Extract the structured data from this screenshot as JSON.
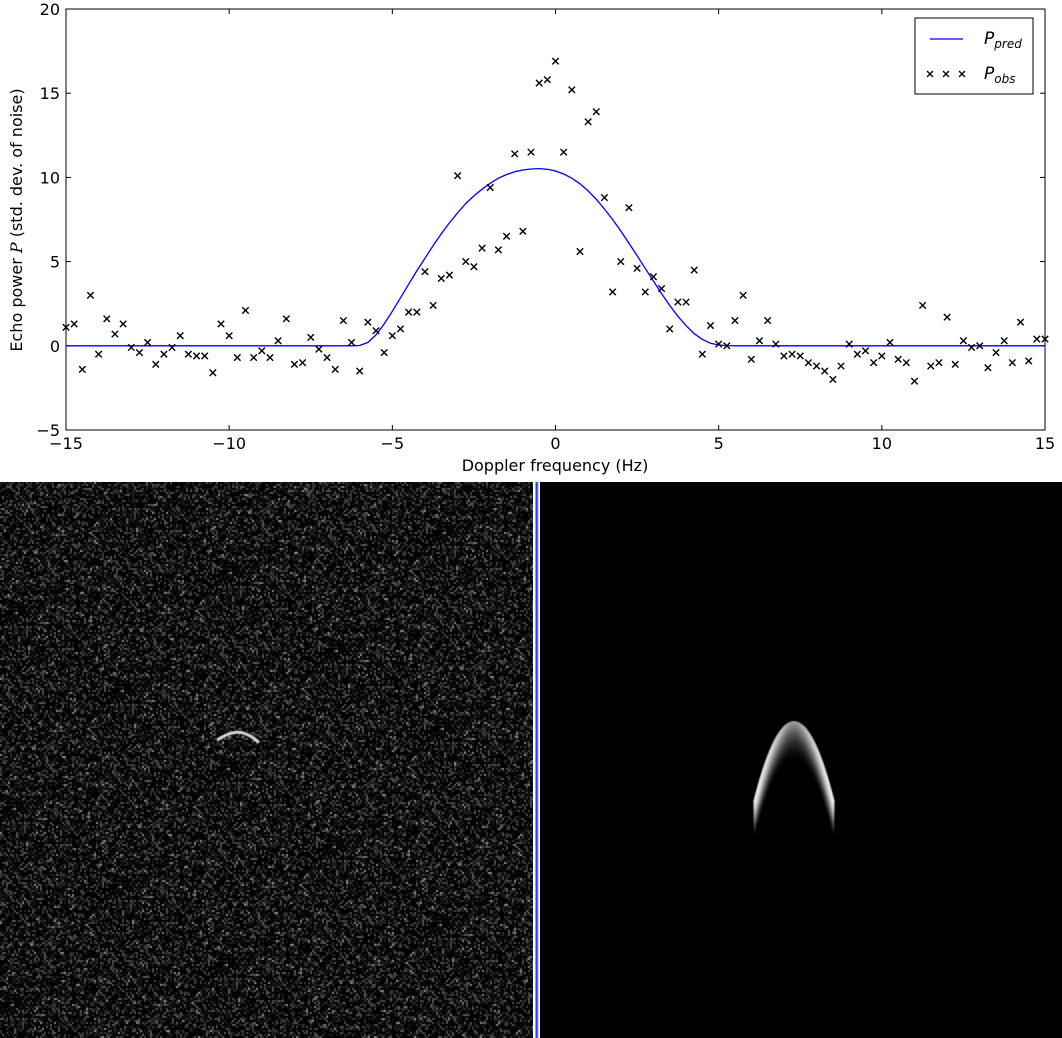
{
  "chart_data": {
    "type": "line",
    "title": "",
    "xlabel": "Doppler frequency (Hz)",
    "ylabel_prefix": "Echo power ",
    "ylabel_symbol": "P",
    "ylabel_suffix": " (std. dev. of noise)",
    "xlim": [
      -15,
      15
    ],
    "ylim": [
      -5,
      20
    ],
    "xticks": [
      -15,
      -10,
      -5,
      0,
      5,
      10,
      15
    ],
    "yticks": [
      -5,
      0,
      5,
      10,
      15,
      20
    ],
    "xtick_labels": [
      "−15",
      "−10",
      "−5",
      "0",
      "5",
      "10",
      "15"
    ],
    "ytick_labels": [
      "−5",
      "0",
      "5",
      "10",
      "15",
      "20"
    ],
    "grid": false,
    "legend": "top-right",
    "series": [
      {
        "name_base": "P",
        "name_sub": "pred",
        "style": "line",
        "color": "#0000ff",
        "x": [
          -15,
          -6.25,
          -6,
          -5.75,
          -5.5,
          -5.25,
          -5,
          -4.75,
          -4.5,
          -4.25,
          -4,
          -3.75,
          -3.5,
          -3.25,
          -3,
          -2.75,
          -2.5,
          -2.25,
          -2,
          -1.75,
          -1.5,
          -1.25,
          -1,
          -0.75,
          -0.5,
          -0.25,
          0,
          0.25,
          0.5,
          0.75,
          1,
          1.25,
          1.5,
          1.75,
          2,
          2.25,
          2.5,
          2.75,
          3,
          3.25,
          3.5,
          3.75,
          4,
          4.25,
          4.5,
          4.75,
          5,
          5.25,
          5.5,
          15
        ],
        "y": [
          0,
          0,
          0.02,
          0.2,
          0.65,
          1.3,
          2.05,
          2.85,
          3.65,
          4.45,
          5.2,
          5.95,
          6.65,
          7.3,
          7.9,
          8.45,
          8.9,
          9.3,
          9.65,
          9.95,
          10.17,
          10.33,
          10.44,
          10.5,
          10.52,
          10.48,
          10.38,
          10.2,
          9.95,
          9.62,
          9.2,
          8.7,
          8.12,
          7.5,
          6.82,
          6.1,
          5.35,
          4.6,
          3.85,
          3.1,
          2.4,
          1.75,
          1.2,
          0.72,
          0.38,
          0.15,
          0.05,
          0.01,
          0,
          0
        ]
      },
      {
        "name_base": "P",
        "name_sub": "obs",
        "style": "markers",
        "marker": "x",
        "color": "#000000",
        "x": [
          -15,
          -14.75,
          -14.5,
          -14.25,
          -14,
          -13.75,
          -13.5,
          -13.25,
          -13,
          -12.75,
          -12.5,
          -12.25,
          -12,
          -11.75,
          -11.5,
          -11.25,
          -11,
          -10.75,
          -10.5,
          -10.25,
          -10,
          -9.75,
          -9.5,
          -9.25,
          -9,
          -8.75,
          -8.5,
          -8.25,
          -8,
          -7.75,
          -7.5,
          -7.25,
          -7,
          -6.75,
          -6.5,
          -6.25,
          -6,
          -5.75,
          -5.5,
          -5.25,
          -5,
          -4.75,
          -4.5,
          -4.25,
          -4,
          -3.75,
          -3.5,
          -3.25,
          -3,
          -2.75,
          -2.5,
          -2.25,
          -2,
          -1.75,
          -1.5,
          -1.25,
          -1,
          -0.75,
          -0.5,
          -0.25,
          0,
          0.25,
          0.5,
          0.75,
          1,
          1.25,
          1.5,
          1.75,
          2,
          2.25,
          2.5,
          2.75,
          3,
          3.25,
          3.5,
          3.75,
          4,
          4.25,
          4.5,
          4.75,
          5,
          5.25,
          5.5,
          5.75,
          6,
          6.25,
          6.5,
          6.75,
          7,
          7.25,
          7.5,
          7.75,
          8,
          8.25,
          8.5,
          8.75,
          9,
          9.25,
          9.5,
          9.75,
          10,
          10.25,
          10.5,
          10.75,
          11,
          11.25,
          11.5,
          11.75,
          12,
          12.25,
          12.5,
          12.75,
          13,
          13.25,
          13.5,
          13.75,
          14,
          14.25,
          14.5,
          14.75,
          15
        ],
        "y": [
          1.1,
          1.3,
          -1.4,
          3.0,
          -0.5,
          1.6,
          0.7,
          1.3,
          -0.1,
          -0.4,
          0.2,
          -1.1,
          -0.5,
          -0.1,
          0.6,
          -0.5,
          -0.6,
          -0.6,
          -1.6,
          1.3,
          0.6,
          -0.7,
          2.1,
          -0.7,
          -0.3,
          -0.7,
          0.3,
          1.6,
          -1.1,
          -1.0,
          0.5,
          -0.2,
          -0.7,
          -1.4,
          1.5,
          0.2,
          -1.5,
          1.4,
          0.9,
          -0.4,
          0.6,
          1.0,
          2.0,
          2.0,
          4.4,
          2.4,
          4.0,
          4.2,
          10.1,
          5.0,
          4.7,
          5.8,
          9.4,
          5.7,
          6.5,
          11.4,
          6.8,
          11.5,
          15.6,
          15.8,
          16.9,
          11.5,
          15.2,
          5.6,
          13.3,
          13.9,
          8.8,
          3.2,
          5.0,
          8.2,
          4.6,
          3.2,
          4.1,
          3.4,
          1.0,
          2.6,
          2.6,
          4.5,
          -0.5,
          1.2,
          0.1,
          0.0,
          1.5,
          3.0,
          -0.8,
          0.3,
          1.5,
          0.1,
          -0.6,
          -0.5,
          -0.6,
          -1.0,
          -1.2,
          -1.5,
          -2.0,
          -1.2,
          0.1,
          -0.5,
          -0.3,
          -1.0,
          -0.6,
          0.2,
          -0.8,
          -1.0,
          -2.1,
          2.4,
          -1.2,
          -1.0,
          1.7,
          -1.1,
          0.3,
          -0.1,
          0.0,
          -1.3,
          -0.4,
          0.3,
          -1.0,
          1.4,
          -0.9,
          0.4,
          0.4
        ]
      }
    ]
  },
  "images": {
    "observed_panel": "observed delay-Doppler radar image (noisy)",
    "predicted_panel": "predicted delay-Doppler radar image (model)"
  }
}
